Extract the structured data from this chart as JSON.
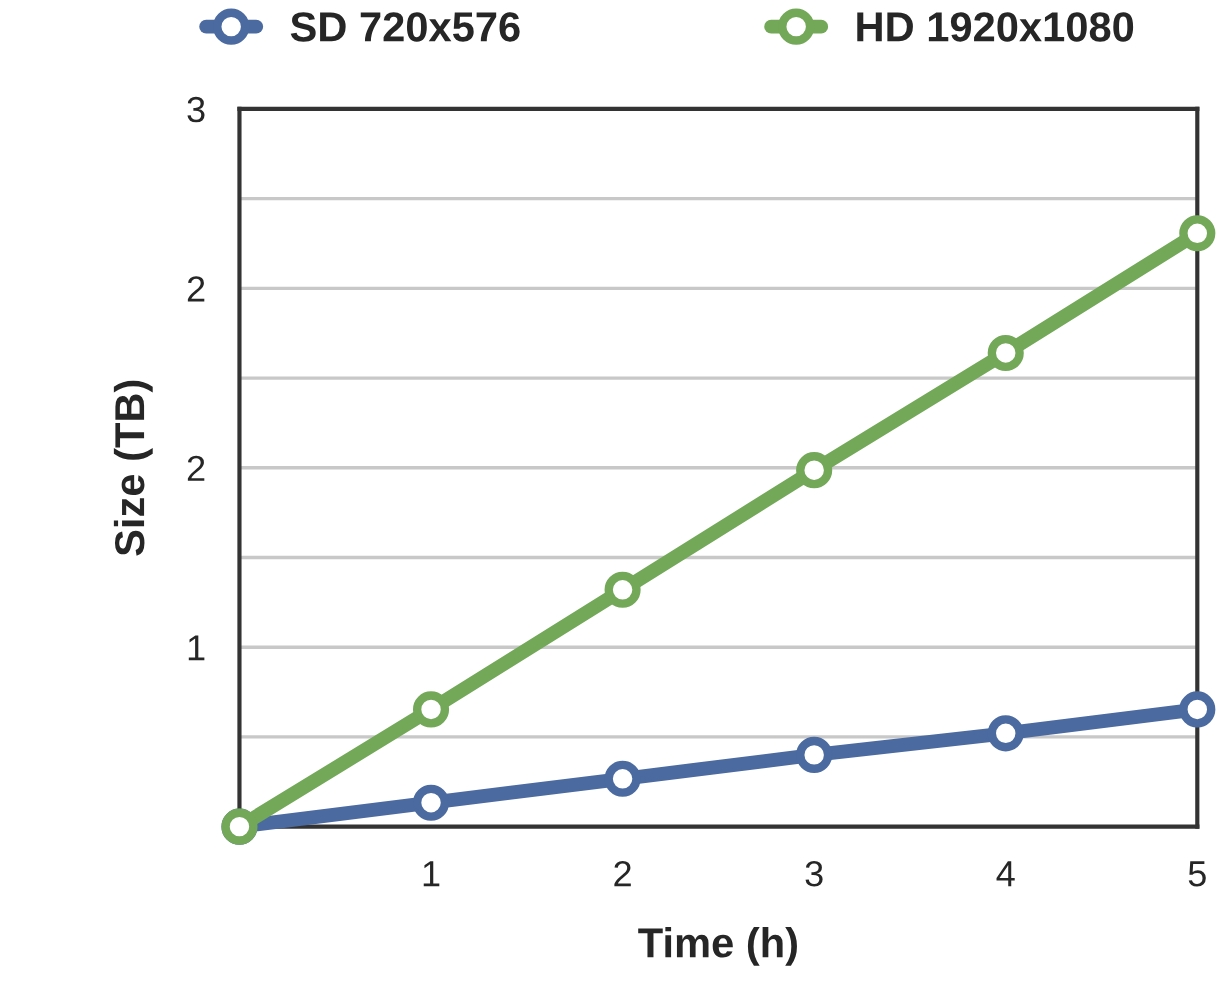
{
  "chart_data": {
    "type": "line",
    "xlabel": "Time (h)",
    "ylabel": "Size (TB)",
    "x": [
      0,
      1,
      2,
      3,
      4,
      5
    ],
    "series": [
      {
        "name": "SD 720x576",
        "color": "#4a6aa0",
        "values": [
          0,
          0.1,
          0.2,
          0.3,
          0.39,
          0.49
        ]
      },
      {
        "name": "HD 1920x1080",
        "color": "#72a857",
        "values": [
          0,
          0.49,
          0.99,
          1.49,
          1.98,
          2.48
        ]
      }
    ],
    "xlim": [
      0,
      5
    ],
    "xticks": [
      1,
      2,
      3,
      4,
      5
    ],
    "ylim": [
      0,
      3
    ],
    "yticks": [
      {
        "value": 0.375,
        "label": null
      },
      {
        "value": 0.75,
        "label": "1"
      },
      {
        "value": 1.125,
        "label": null
      },
      {
        "value": 1.5,
        "label": "2"
      },
      {
        "value": 1.875,
        "label": null
      },
      {
        "value": 2.25,
        "label": "2"
      },
      {
        "value": 2.625,
        "label": null
      },
      {
        "value": 3,
        "label": "3"
      }
    ],
    "grid": "y",
    "legend": "top",
    "marker": "circle",
    "line_style": "solid"
  }
}
